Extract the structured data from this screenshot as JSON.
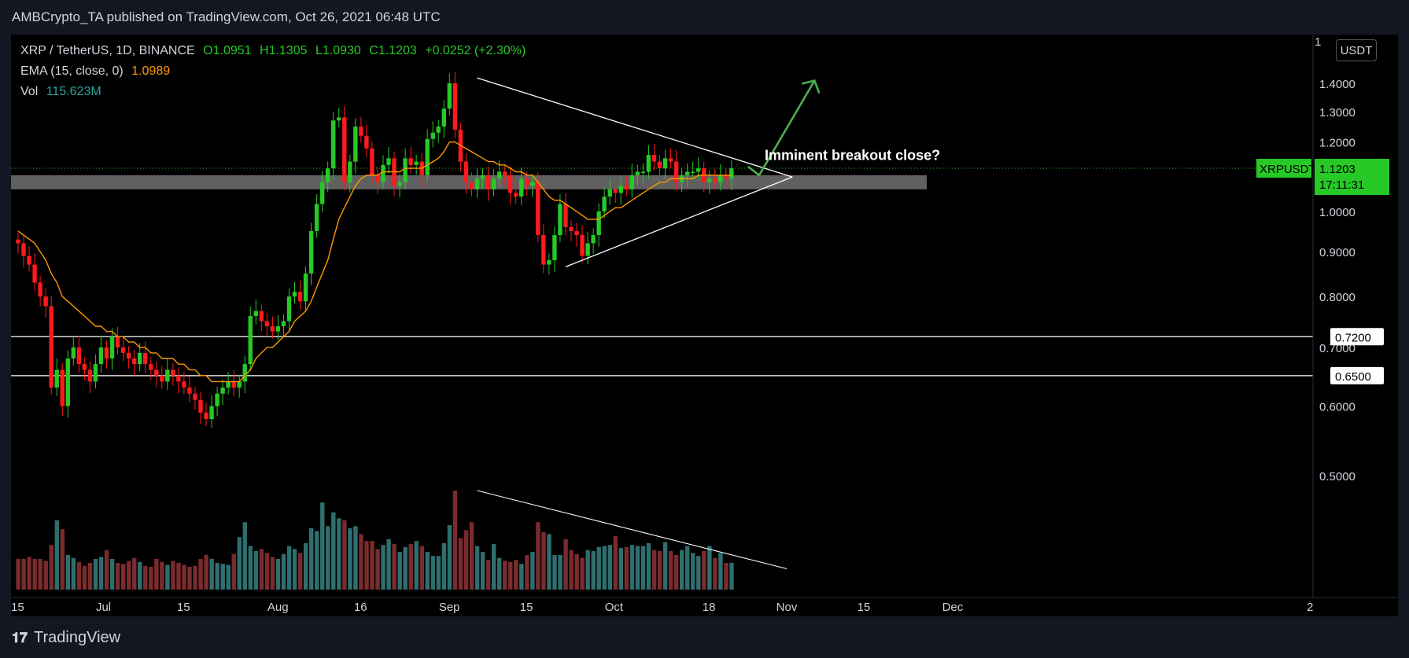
{
  "header": {
    "publisher": "AMBCrypto_TA published on TradingView.com, Oct 26, 2021 06:48 UTC"
  },
  "legend": {
    "symbol": "XRP / TetherUS, 1D, BINANCE",
    "open": "O1.0951",
    "high": "H1.1305",
    "low": "L1.0930",
    "close": "C1.1203",
    "change": "+0.0252 (+2.30%)",
    "ema_label": "EMA (15, close, 0)",
    "ema_value": "1.0989",
    "vol_label": "Vol",
    "vol_value": "115.623M"
  },
  "price_tag": {
    "symbol": "XRPUSDT",
    "price": "1.1203",
    "countdown": "17:11:31"
  },
  "currency": "USDT",
  "brand": "TradingView",
  "colors": {
    "up": "#26c926",
    "down": "#ff1b1b",
    "ema": "#ff9800",
    "vol_up": "#2f6e6e",
    "vol_down": "#7a2b2e",
    "arrow": "#4caf50",
    "zone": "#808080"
  },
  "chart_data": {
    "type": "candlestick",
    "title": "",
    "y_scale": "log",
    "ylim": [
      0.43,
      1.52
    ],
    "yticks": [
      0.5,
      0.6,
      0.7,
      0.8,
      0.9,
      1.0,
      1.1,
      1.2,
      1.3,
      1.4
    ],
    "ytick_labels": [
      "0.5000",
      "0.6000",
      "0.7000",
      "0.8000",
      "0.9000",
      "1.0000",
      "1.1000",
      "1.2000",
      "1.3000",
      "1.4000"
    ],
    "xtick_labels": [
      {
        "label": "15",
        "date": "2021-06-15"
      },
      {
        "label": "Jul",
        "date": "2021-07-01"
      },
      {
        "label": "15",
        "date": "2021-07-15"
      },
      {
        "label": "Aug",
        "date": "2021-08-01"
      },
      {
        "label": "16",
        "date": "2021-08-16"
      },
      {
        "label": "Sep",
        "date": "2021-09-01"
      },
      {
        "label": "15",
        "date": "2021-09-15"
      },
      {
        "label": "Oct",
        "date": "2021-10-01"
      },
      {
        "label": "18",
        "date": "2021-10-18"
      },
      {
        "label": "Nov",
        "date": "2021-11-01"
      },
      {
        "label": "15",
        "date": "2021-11-15"
      },
      {
        "label": "Dec",
        "date": "2021-12-01"
      }
    ],
    "close": [
      0.92,
      0.89,
      0.87,
      0.83,
      0.8,
      0.78,
      0.63,
      0.66,
      0.6,
      0.68,
      0.7,
      0.67,
      0.66,
      0.64,
      0.67,
      0.7,
      0.68,
      0.72,
      0.7,
      0.69,
      0.68,
      0.67,
      0.69,
      0.67,
      0.66,
      0.65,
      0.64,
      0.66,
      0.65,
      0.64,
      0.63,
      0.62,
      0.61,
      0.59,
      0.58,
      0.6,
      0.62,
      0.63,
      0.64,
      0.63,
      0.64,
      0.67,
      0.76,
      0.77,
      0.75,
      0.74,
      0.73,
      0.74,
      0.75,
      0.8,
      0.81,
      0.79,
      0.85,
      0.95,
      1.02,
      1.08,
      1.12,
      1.27,
      1.28,
      1.08,
      1.14,
      1.25,
      1.22,
      1.18,
      1.1,
      1.08,
      1.13,
      1.15,
      1.07,
      1.08,
      1.15,
      1.13,
      1.14,
      1.1,
      1.21,
      1.23,
      1.25,
      1.31,
      1.4,
      1.24,
      1.14,
      1.08,
      1.06,
      1.09,
      1.1,
      1.06,
      1.09,
      1.11,
      1.1,
      1.05,
      1.04,
      1.09,
      1.07,
      1.08,
      0.94,
      0.87,
      0.88,
      0.94,
      1.02,
      0.96,
      0.95,
      0.94,
      0.89,
      0.92,
      0.94,
      1.0,
      1.04,
      1.06,
      1.05,
      1.07,
      1.06,
      1.1,
      1.11,
      1.11,
      1.16,
      1.14,
      1.12,
      1.15,
      1.14,
      1.08,
      1.1,
      1.11,
      1.11,
      1.12,
      1.08,
      1.09,
      1.08,
      1.1,
      1.09,
      1.12
    ],
    "ema15": [
      0.95,
      0.94,
      0.93,
      0.92,
      0.9,
      0.88,
      0.85,
      0.83,
      0.8,
      0.79,
      0.78,
      0.77,
      0.76,
      0.75,
      0.74,
      0.74,
      0.73,
      0.73,
      0.72,
      0.72,
      0.71,
      0.71,
      0.7,
      0.7,
      0.69,
      0.69,
      0.68,
      0.68,
      0.68,
      0.67,
      0.67,
      0.66,
      0.66,
      0.65,
      0.65,
      0.64,
      0.64,
      0.64,
      0.64,
      0.64,
      0.64,
      0.65,
      0.66,
      0.68,
      0.69,
      0.7,
      0.7,
      0.71,
      0.72,
      0.73,
      0.75,
      0.76,
      0.77,
      0.79,
      0.82,
      0.85,
      0.88,
      0.93,
      0.98,
      1.01,
      1.04,
      1.07,
      1.09,
      1.1,
      1.1,
      1.1,
      1.11,
      1.11,
      1.11,
      1.11,
      1.12,
      1.12,
      1.12,
      1.12,
      1.13,
      1.14,
      1.15,
      1.17,
      1.2,
      1.2,
      1.19,
      1.18,
      1.17,
      1.16,
      1.15,
      1.14,
      1.14,
      1.13,
      1.13,
      1.12,
      1.11,
      1.11,
      1.1,
      1.1,
      1.08,
      1.06,
      1.04,
      1.03,
      1.03,
      1.02,
      1.01,
      1.0,
      0.99,
      0.98,
      0.98,
      0.98,
      0.99,
      1.0,
      1.01,
      1.01,
      1.02,
      1.03,
      1.04,
      1.05,
      1.06,
      1.07,
      1.08,
      1.08,
      1.09,
      1.09,
      1.09,
      1.09,
      1.09,
      1.1,
      1.1,
      1.1,
      1.1,
      1.1,
      1.1,
      1.1
    ],
    "volume_rel": [
      0.31,
      0.31,
      0.33,
      0.31,
      0.31,
      0.29,
      0.45,
      0.7,
      0.61,
      0.35,
      0.32,
      0.28,
      0.24,
      0.27,
      0.31,
      0.33,
      0.4,
      0.31,
      0.27,
      0.26,
      0.29,
      0.32,
      0.28,
      0.24,
      0.23,
      0.31,
      0.28,
      0.25,
      0.29,
      0.27,
      0.25,
      0.23,
      0.24,
      0.31,
      0.35,
      0.31,
      0.27,
      0.26,
      0.25,
      0.36,
      0.53,
      0.68,
      0.44,
      0.39,
      0.41,
      0.37,
      0.33,
      0.31,
      0.36,
      0.44,
      0.41,
      0.37,
      0.47,
      0.62,
      0.59,
      0.88,
      0.64,
      0.78,
      0.72,
      0.7,
      0.62,
      0.64,
      0.56,
      0.49,
      0.49,
      0.41,
      0.45,
      0.51,
      0.46,
      0.38,
      0.43,
      0.46,
      0.49,
      0.44,
      0.38,
      0.34,
      0.34,
      0.47,
      0.65,
      1.0,
      0.52,
      0.6,
      0.68,
      0.44,
      0.38,
      0.3,
      0.46,
      0.32,
      0.29,
      0.28,
      0.3,
      0.26,
      0.35,
      0.38,
      0.68,
      0.58,
      0.56,
      0.35,
      0.35,
      0.51,
      0.4,
      0.36,
      0.32,
      0.4,
      0.39,
      0.43,
      0.44,
      0.45,
      0.54,
      0.42,
      0.43,
      0.45,
      0.44,
      0.44,
      0.47,
      0.4,
      0.39,
      0.48,
      0.39,
      0.35,
      0.4,
      0.44,
      0.37,
      0.34,
      0.39,
      0.44,
      0.32,
      0.37,
      0.27,
      0.27
    ],
    "horizontal_lines": [
      {
        "price": 0.72,
        "label": "0.7200"
      },
      {
        "price": 0.65,
        "label": "0.6500"
      }
    ],
    "support_zone": {
      "low": 1.06,
      "high": 1.1
    },
    "current_price": 1.1203,
    "annotation": "Imminent breakout close?"
  }
}
